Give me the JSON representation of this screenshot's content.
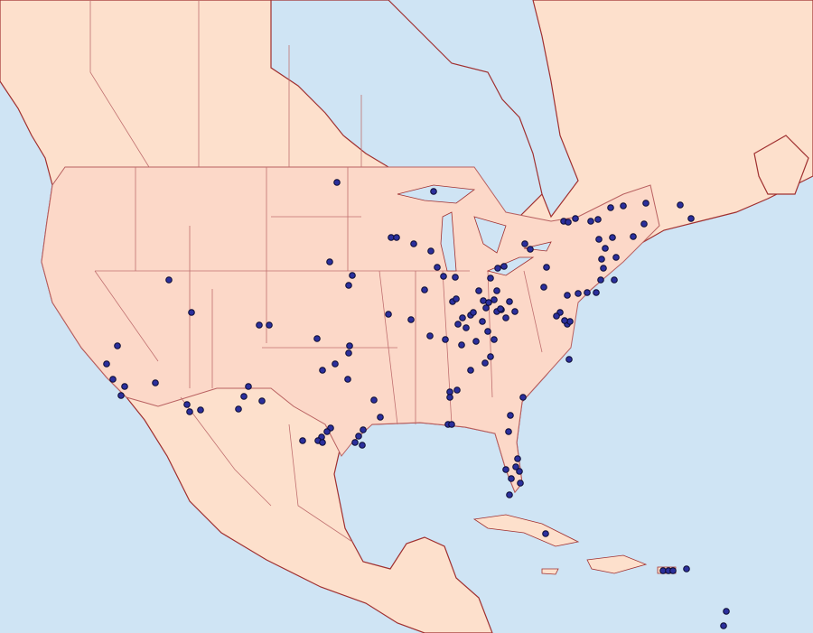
{
  "map": {
    "type": "occurrence-dot-map",
    "region": "North America",
    "colors": {
      "water": "#cfe4f4",
      "land": "#fde0cc",
      "us_land": "#fcd8c8",
      "border": "#b86060",
      "coast": "#a03030",
      "dot_fill": "#2b2f9c",
      "dot_stroke": "#0a0a30"
    }
  }
}
